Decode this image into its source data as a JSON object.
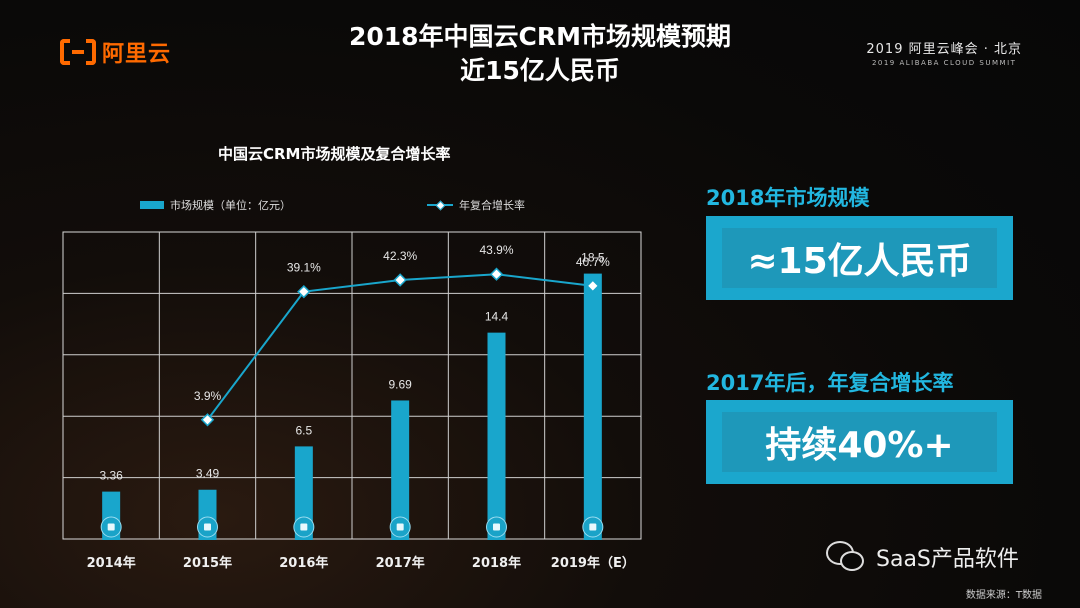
{
  "header": {
    "brand": "阿里云",
    "title_line1": "2018年中国云CRM市场规模预期",
    "title_line2": "近15亿人民币",
    "summit_title": "2019 阿里云峰会 · 北京",
    "summit_subtitle": "2019 ALIBABA CLOUD SUMMIT"
  },
  "chart_data": {
    "type": "bar",
    "title": "中国云CRM市场规模及复合增长率",
    "categories": [
      "2014年",
      "2015年",
      "2016年",
      "2017年",
      "2018年",
      "2019年（E）"
    ],
    "series": [
      {
        "name": "市场规模（单位：亿元）",
        "type": "bar",
        "values": [
          3.36,
          3.49,
          6.5,
          9.69,
          14.4,
          18.5
        ],
        "labels": [
          "3.36",
          "3.49",
          "6.5",
          "9.69",
          "14.4",
          "18.5"
        ]
      },
      {
        "name": "年复合增长率",
        "type": "line",
        "values": [
          null,
          3.9,
          39.1,
          42.3,
          43.9,
          40.7
        ],
        "labels": [
          "",
          "3.9%",
          "39.1%",
          "42.3%",
          "43.9%",
          "40.7%"
        ]
      }
    ],
    "grid": true,
    "legend_position": "top",
    "colors": {
      "bar": "#19a6cc",
      "line": "#19a6cc",
      "marker": "#ffffff"
    }
  },
  "kpis": [
    {
      "heading": "2018年市场规模",
      "value": "≈15亿人民币"
    },
    {
      "heading": "2017年后，年复合增长率",
      "value": "持续40%+"
    }
  ],
  "footer": {
    "watermark": "SaaS产品软件",
    "source": "数据来源：T数据"
  }
}
